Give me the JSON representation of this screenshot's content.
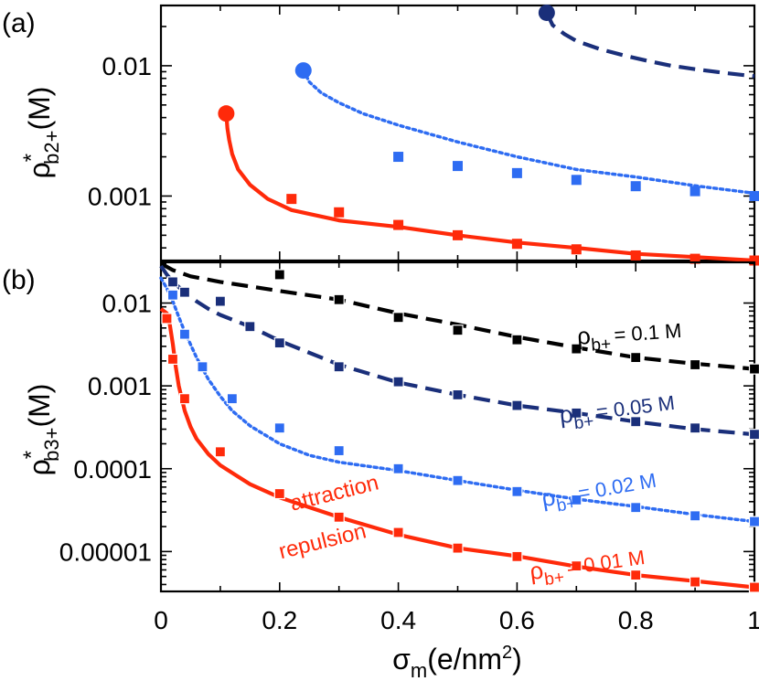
{
  "colors": {
    "red": "#ff2a0a",
    "blue": "#2e6cf2",
    "navy": "#1a2f7a",
    "black": "#000000"
  },
  "xlabel": {
    "main": "σ",
    "sub": "m",
    "unit": "(e/nm",
    "sup": "2",
    "close": ")"
  },
  "x_ticks": [
    "0",
    "0.2",
    "0.4",
    "0.6",
    "0.8",
    "1"
  ],
  "chart_data": [
    {
      "panel_label": "(a)",
      "type": "line",
      "xlim": [
        0,
        1
      ],
      "ylim": [
        0.00032,
        0.029
      ],
      "yscale": "log",
      "y_ticks": [
        {
          "value": 0.01,
          "label": "0.01"
        },
        {
          "value": 0.001,
          "label": "0.001"
        }
      ],
      "ylabel": {
        "main": "ρ",
        "sup": "*",
        "sub": "b2+",
        "unit": "(M)"
      },
      "series": [
        {
          "name": "navy dashed",
          "color": "navy",
          "dash": "dashed",
          "curve_x": [
            0.65,
            0.66,
            0.68,
            0.7,
            0.74,
            0.78,
            0.82,
            0.86,
            0.9,
            0.95,
            1.0
          ],
          "curve_y": [
            0.0255,
            0.0205,
            0.0175,
            0.0155,
            0.0134,
            0.012,
            0.0109,
            0.01,
            0.0094,
            0.0088,
            0.0083
          ],
          "endpoint": [
            0.65,
            0.0255
          ],
          "markers_x": [],
          "markers_y": []
        },
        {
          "name": "blue dotted",
          "color": "blue",
          "dash": "dotted",
          "curve_x": [
            0.24,
            0.25,
            0.27,
            0.3,
            0.34,
            0.4,
            0.5,
            0.6,
            0.7,
            0.8,
            0.9,
            1.0
          ],
          "curve_y": [
            0.0092,
            0.0075,
            0.0062,
            0.0052,
            0.0043,
            0.0035,
            0.0026,
            0.002,
            0.0016,
            0.0014,
            0.0012,
            0.00105
          ],
          "endpoint": [
            0.24,
            0.0092
          ],
          "markers_x": [
            0.4,
            0.5,
            0.6,
            0.7,
            0.8,
            0.9,
            1.0
          ],
          "markers_y": [
            0.002,
            0.0017,
            0.0015,
            0.00133,
            0.00119,
            0.00109,
            0.001
          ]
        },
        {
          "name": "red solid",
          "color": "red",
          "dash": "solid",
          "curve_x": [
            0.11,
            0.112,
            0.115,
            0.12,
            0.13,
            0.15,
            0.18,
            0.22,
            0.3,
            0.4,
            0.5,
            0.6,
            0.7,
            0.8,
            0.9,
            1.0
          ],
          "curve_y": [
            0.0043,
            0.0033,
            0.0027,
            0.0021,
            0.0016,
            0.00122,
            0.00095,
            0.00078,
            0.00065,
            0.00058,
            0.0005,
            0.00044,
            0.0004,
            0.00036,
            0.00034,
            0.00032
          ],
          "endpoint": [
            0.11,
            0.0043
          ],
          "markers_x": [
            0.22,
            0.3,
            0.4,
            0.5,
            0.6,
            0.7,
            0.8,
            0.9,
            1.0
          ],
          "markers_y": [
            0.00095,
            0.00075,
            0.0006,
            0.0005,
            0.00043,
            0.00039,
            0.00035,
            0.00033,
            0.00032
          ]
        }
      ]
    },
    {
      "panel_label": "(b)",
      "type": "line",
      "xlim": [
        0,
        1
      ],
      "ylim": [
        3.3e-06,
        0.031
      ],
      "yscale": "log",
      "y_ticks": [
        {
          "value": 0.01,
          "label": "0.01"
        },
        {
          "value": 0.001,
          "label": "0.001"
        },
        {
          "value": 0.0001,
          "label": "0.0001"
        },
        {
          "value": 1e-05,
          "label": "0.00001"
        }
      ],
      "ylabel": {
        "main": "ρ",
        "sup": "*",
        "sub": "b3+",
        "unit": "(M)"
      },
      "annotations": [
        {
          "text": "attraction",
          "x": 0.295,
          "y": 4.2e-05
        },
        {
          "text": "repulsion",
          "x": 0.275,
          "y": 1.1e-05
        }
      ],
      "series": [
        {
          "name": "ρb+ = 0.1 M",
          "label_main": "ρ",
          "label_sub": "b+",
          "label_rest": "= 0.1 M",
          "label_pos": [
            0.79,
            0.0035
          ],
          "label_angle": -4,
          "color": "black",
          "dash": "dashed",
          "curve_x": [
            0.0,
            0.02,
            0.05,
            0.1,
            0.2,
            0.3,
            0.4,
            0.5,
            0.6,
            0.7,
            0.8,
            0.9,
            1.0
          ],
          "curve_y": [
            0.03,
            0.025,
            0.021,
            0.018,
            0.014,
            0.011,
            0.0075,
            0.0055,
            0.0039,
            0.0029,
            0.0022,
            0.00185,
            0.0016
          ],
          "markers_x": [
            0.2,
            0.3,
            0.4,
            0.5,
            0.6,
            0.7,
            0.8,
            0.9,
            1.0
          ],
          "markers_y": [
            0.022,
            0.011,
            0.0067,
            0.0047,
            0.0036,
            0.0028,
            0.0022,
            0.0018,
            0.0016
          ]
        },
        {
          "name": "ρb+ = 0.05 M",
          "label_main": "ρ",
          "label_sub": "b+",
          "label_rest": "= 0.05 M",
          "label_pos": [
            0.77,
            0.00043
          ],
          "label_angle": -7,
          "color": "navy",
          "dash": "dashed",
          "curve_x": [
            0.0,
            0.01,
            0.02,
            0.04,
            0.06,
            0.08,
            0.1,
            0.15,
            0.2,
            0.3,
            0.4,
            0.5,
            0.6,
            0.7,
            0.8,
            0.9,
            1.0
          ],
          "curve_y": [
            0.028,
            0.022,
            0.018,
            0.0135,
            0.0105,
            0.0085,
            0.0072,
            0.0052,
            0.0035,
            0.0018,
            0.0011,
            0.00078,
            0.00058,
            0.00047,
            0.00037,
            0.0003,
            0.00026
          ],
          "markers_x": [
            0.02,
            0.04,
            0.1,
            0.15,
            0.2,
            0.3,
            0.4,
            0.5,
            0.6,
            0.7,
            0.8,
            0.9,
            1.0
          ],
          "markers_y": [
            0.018,
            0.0135,
            0.0105,
            0.0052,
            0.0033,
            0.0017,
            0.00112,
            0.00078,
            0.00058,
            0.00047,
            0.00037,
            0.00031,
            0.00026
          ]
        },
        {
          "name": "ρb+ = 0.02 M",
          "label_main": "ρ",
          "label_sub": "b+",
          "label_rest": "= 0.02 M",
          "label_pos": [
            0.74,
            4.6e-05
          ],
          "label_angle": -10,
          "color": "blue",
          "dash": "dotted",
          "curve_x": [
            0.0,
            0.01,
            0.02,
            0.03,
            0.04,
            0.06,
            0.08,
            0.1,
            0.12,
            0.15,
            0.2,
            0.25,
            0.3,
            0.4,
            0.5,
            0.6,
            0.7,
            0.8,
            0.9,
            1.0
          ],
          "curve_y": [
            0.02,
            0.015,
            0.0105,
            0.0068,
            0.0045,
            0.0022,
            0.0012,
            0.00075,
            0.0005,
            0.00033,
            0.0002,
            0.000145,
            0.00012,
            9.5e-05,
            7.2e-05,
            5.5e-05,
            4.3e-05,
            3.5e-05,
            2.8e-05,
            2.3e-05
          ],
          "markers_x": [
            0.02,
            0.04,
            0.07,
            0.12,
            0.2,
            0.3,
            0.4,
            0.5,
            0.6,
            0.7,
            0.8,
            0.9,
            1.0
          ],
          "markers_y": [
            0.0125,
            0.0042,
            0.0017,
            0.0007,
            0.00031,
            0.000165,
            0.0001,
            7.2e-05,
            5.3e-05,
            4.2e-05,
            3.4e-05,
            2.7e-05,
            2.3e-05
          ]
        },
        {
          "name": "ρb+ = 0.01 M",
          "label_main": "ρ",
          "label_sub": "b+",
          "label_rest": "= 0.01 M",
          "label_pos": [
            0.72,
            5.7e-06
          ],
          "label_angle": -8,
          "color": "red",
          "dash": "solid",
          "curve_x": [
            0.0,
            0.01,
            0.015,
            0.02,
            0.025,
            0.03,
            0.04,
            0.05,
            0.06,
            0.08,
            0.1,
            0.15,
            0.2,
            0.3,
            0.4,
            0.5,
            0.6,
            0.7,
            0.8,
            0.9,
            1.0
          ],
          "curve_y": [
            0.0085,
            0.0075,
            0.0055,
            0.0032,
            0.0017,
            0.001,
            0.0005,
            0.00032,
            0.00023,
            0.00015,
            0.00011,
            6.5e-05,
            4.5e-05,
            2.6e-05,
            1.6e-05,
            1.1e-05,
            8.8e-06,
            6.6e-06,
            5.2e-06,
            4.4e-06,
            3.7e-06
          ],
          "markers_x": [
            0.01,
            0.02,
            0.04,
            0.1,
            0.2,
            0.3,
            0.4,
            0.5,
            0.6,
            0.7,
            0.8,
            0.9,
            1.0
          ],
          "markers_y": [
            0.0065,
            0.0021,
            0.0007,
            0.00016,
            5e-05,
            2.6e-05,
            1.7e-05,
            1.1e-05,
            8.7e-06,
            6.7e-06,
            5.2e-06,
            4.3e-06,
            3.7e-06
          ]
        }
      ]
    }
  ]
}
